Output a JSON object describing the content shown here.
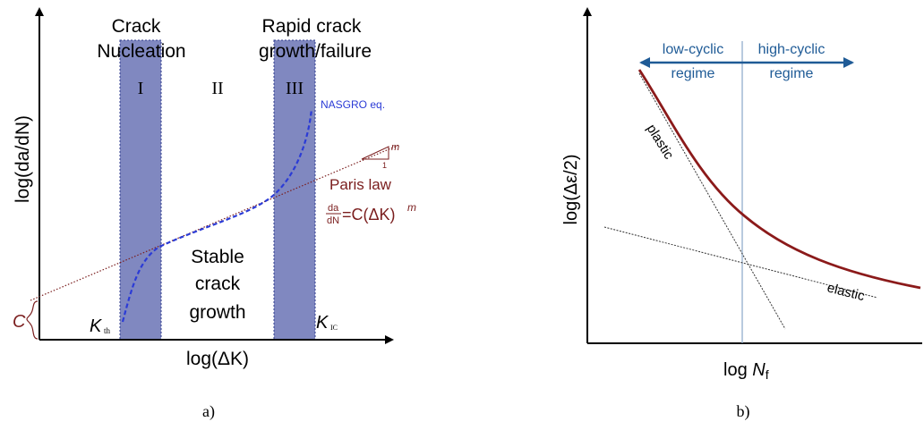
{
  "panel_a": {
    "caption": "a)",
    "y_axis_label": "log(da/dN)",
    "x_axis_label": "log(ΔK)",
    "title_nucleation_line1": "Crack",
    "title_nucleation_line2": "Nucleation",
    "title_rapid_line1": "Rapid crack",
    "title_rapid_line2": "growth/failure",
    "region_1": "I",
    "region_2": "II",
    "region_3": "III",
    "nasgro_label": "NASGRO eq.",
    "slope_label": "m",
    "slope_run": "1",
    "paris_law_label": "Paris law",
    "paris_frac_num": "da",
    "paris_frac_den": "dN",
    "paris_eq_rhs": "=C(ΔK)",
    "paris_exp": "m",
    "stable_line1": "Stable",
    "stable_line2": "crack",
    "stable_line3": "growth",
    "k_th_main": "K",
    "k_th_sub": "th",
    "k_ic_main": "K",
    "k_ic_sub": "IC",
    "c_label": "C",
    "colors": {
      "band": "#8088c0",
      "nasgro": "#2b3bd6",
      "paris": "#7a1d1d"
    }
  },
  "panel_b": {
    "caption": "b)",
    "y_axis_label": "log(Δε/2)",
    "x_axis_label_main": "log ",
    "x_axis_label_var": "N",
    "x_axis_label_sub": "f",
    "low_regime_line1": "low-cyclic",
    "low_regime_line2": "regime",
    "high_regime_line1": "high-cyclic",
    "high_regime_line2": "regime",
    "plastic_label": "plastic",
    "elastic_label": "elastic",
    "colors": {
      "curve": "#8b1a1a",
      "arrow": "#1f5b96"
    }
  }
}
